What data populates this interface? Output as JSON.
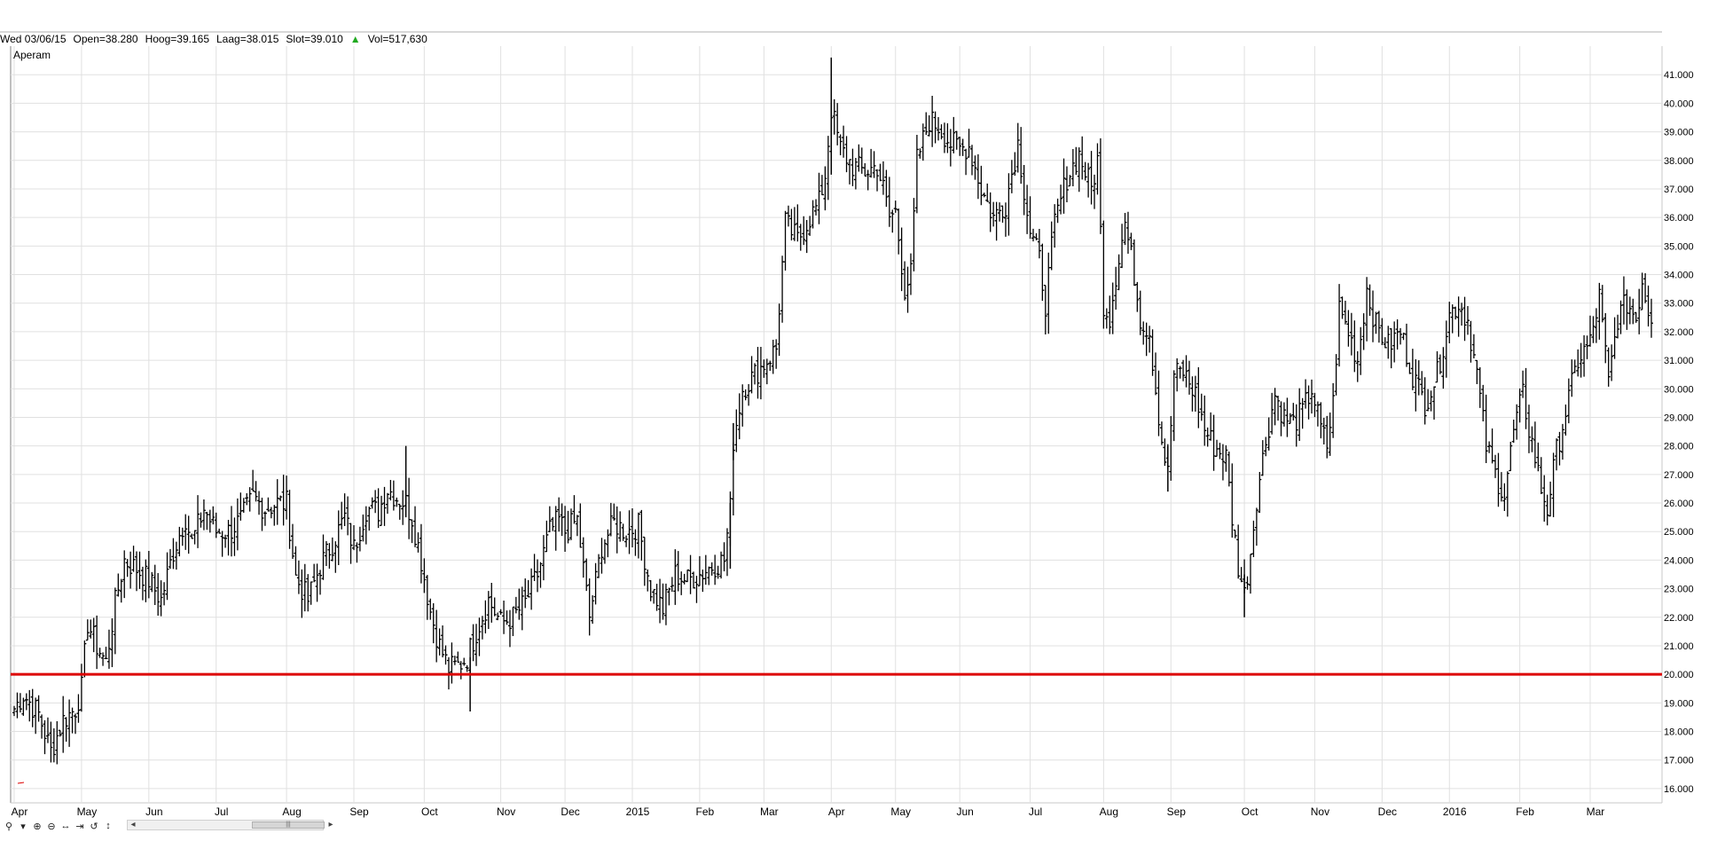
{
  "info_bar": {
    "date": "Wed 03/06/15",
    "open": "Open=38.280",
    "high": "Hoog=39.165",
    "low": "Laag=38.015",
    "close": "Slot=39.010",
    "volume": "Vol=517,630"
  },
  "colors": {
    "bars": "#000000",
    "grid": "#e0e0e0",
    "support_line": "#dd0000",
    "volume_up": "#22aa22"
  },
  "toolbar": {
    "icons": [
      "magnifier-icon",
      "dropdown-icon",
      "zoom-in-icon",
      "zoom-out-icon",
      "pan-horizontal-icon",
      "fit-icon",
      "reset-icon",
      "pan-vertical-icon"
    ]
  },
  "chart_data": {
    "type": "ohlc",
    "symbol_label": "Aperam",
    "y_axis": {
      "min": 15.5,
      "max": 42.0,
      "ticks": [
        "16.000",
        "17.000",
        "18.000",
        "19.000",
        "20.000",
        "21.000",
        "22.000",
        "23.000",
        "24.000",
        "25.000",
        "26.000",
        "27.000",
        "28.000",
        "29.000",
        "30.000",
        "31.000",
        "32.000",
        "33.000",
        "34.000",
        "35.000",
        "36.000",
        "37.000",
        "38.000",
        "39.000",
        "40.000",
        "41.000"
      ]
    },
    "x_axis": {
      "labels": [
        {
          "label": "Apr",
          "pos": 0.0
        },
        {
          "label": "May",
          "pos": 22
        },
        {
          "label": "Jun",
          "pos": 44
        },
        {
          "label": "Jul",
          "pos": 66
        },
        {
          "label": "Aug",
          "pos": 89
        },
        {
          "label": "Sep",
          "pos": 111
        },
        {
          "label": "Oct",
          "pos": 134
        },
        {
          "label": "Nov",
          "pos": 159
        },
        {
          "label": "Dec",
          "pos": 180
        },
        {
          "label": "2015",
          "pos": 202
        },
        {
          "label": "Feb",
          "pos": 224
        },
        {
          "label": "Mar",
          "pos": 245
        },
        {
          "label": "Apr",
          "pos": 267
        },
        {
          "label": "May",
          "pos": 288
        },
        {
          "label": "Jun",
          "pos": 309
        },
        {
          "label": "Jul",
          "pos": 332
        },
        {
          "label": "Aug",
          "pos": 356
        },
        {
          "label": "Sep",
          "pos": 378
        },
        {
          "label": "Oct",
          "pos": 402
        },
        {
          "label": "Nov",
          "pos": 425
        },
        {
          "label": "Dec",
          "pos": 447
        },
        {
          "label": "2016",
          "pos": 469
        },
        {
          "label": "Feb",
          "pos": 492
        },
        {
          "label": "Mar",
          "pos": 515
        }
      ],
      "range": [
        0,
        535
      ]
    },
    "horizontal_line": {
      "value": 20.0
    },
    "series_keypoints": [
      [
        0,
        18.8
      ],
      [
        3,
        19.3
      ],
      [
        8,
        18.6
      ],
      [
        12,
        17.3
      ],
      [
        16,
        18.4
      ],
      [
        20,
        18.8
      ],
      [
        22,
        19.5
      ],
      [
        24,
        21.8
      ],
      [
        27,
        21.0
      ],
      [
        30,
        20.4
      ],
      [
        33,
        22.5
      ],
      [
        36,
        24.0
      ],
      [
        40,
        23.7
      ],
      [
        44,
        23.3
      ],
      [
        48,
        22.6
      ],
      [
        52,
        24.3
      ],
      [
        56,
        25.5
      ],
      [
        58,
        24.6
      ],
      [
        62,
        25.8
      ],
      [
        66,
        25.0
      ],
      [
        70,
        25.0
      ],
      [
        74,
        25.4
      ],
      [
        78,
        26.2
      ],
      [
        82,
        25.8
      ],
      [
        86,
        26.0
      ],
      [
        89,
        26.0
      ],
      [
        92,
        23.4
      ],
      [
        96,
        22.6
      ],
      [
        100,
        23.8
      ],
      [
        104,
        24.6
      ],
      [
        108,
        25.5
      ],
      [
        111,
        24.4
      ],
      [
        115,
        25.8
      ],
      [
        119,
        25.7
      ],
      [
        122,
        26.5
      ],
      [
        125,
        26.2
      ],
      [
        128,
        26.0
      ],
      [
        130,
        25.5
      ],
      [
        133,
        24.0
      ],
      [
        136,
        22.2
      ],
      [
        139,
        21.0
      ],
      [
        142,
        20.2
      ],
      [
        145,
        20.3
      ],
      [
        148,
        20.6
      ],
      [
        151,
        21.5
      ],
      [
        155,
        22.6
      ],
      [
        159,
        21.8
      ],
      [
        163,
        22.0
      ],
      [
        167,
        22.5
      ],
      [
        171,
        23.5
      ],
      [
        175,
        25.0
      ],
      [
        178,
        25.4
      ],
      [
        180,
        25.0
      ],
      [
        184,
        25.4
      ],
      [
        188,
        22.0
      ],
      [
        192,
        24.5
      ],
      [
        196,
        25.3
      ],
      [
        200,
        25.0
      ],
      [
        204,
        25.2
      ],
      [
        208,
        23.0
      ],
      [
        212,
        22.3
      ],
      [
        216,
        23.5
      ],
      [
        220,
        23.3
      ],
      [
        224,
        23.5
      ],
      [
        228,
        23.8
      ],
      [
        232,
        24.0
      ],
      [
        234,
        25.8
      ],
      [
        235,
        28.2
      ],
      [
        238,
        30.0
      ],
      [
        242,
        30.5
      ],
      [
        246,
        31.0
      ],
      [
        249,
        31.4
      ],
      [
        252,
        35.8
      ],
      [
        256,
        35.2
      ],
      [
        260,
        36.0
      ],
      [
        263,
        36.5
      ],
      [
        265,
        37.5
      ],
      [
        267,
        39.8
      ],
      [
        270,
        38.4
      ],
      [
        274,
        37.8
      ],
      [
        278,
        37.6
      ],
      [
        282,
        37.8
      ],
      [
        284,
        37.0
      ],
      [
        286,
        36.0
      ],
      [
        288,
        36.2
      ],
      [
        291,
        33.5
      ],
      [
        293,
        34.0
      ],
      [
        295,
        38.0
      ],
      [
        299,
        39.4
      ],
      [
        302,
        39.2
      ],
      [
        306,
        38.6
      ],
      [
        309,
        38.4
      ],
      [
        312,
        38.5
      ],
      [
        316,
        37.0
      ],
      [
        320,
        36.0
      ],
      [
        324,
        36.5
      ],
      [
        328,
        38.6
      ],
      [
        330,
        37.0
      ],
      [
        332,
        35.5
      ],
      [
        335,
        34.5
      ],
      [
        337,
        33.0
      ],
      [
        340,
        35.8
      ],
      [
        344,
        37.4
      ],
      [
        348,
        38.2
      ],
      [
        352,
        37.0
      ],
      [
        354,
        38.0
      ],
      [
        356,
        33.0
      ],
      [
        358,
        32.5
      ],
      [
        360,
        34.0
      ],
      [
        363,
        35.8
      ],
      [
        366,
        34.0
      ],
      [
        368,
        32.5
      ],
      [
        371,
        32.0
      ],
      [
        373,
        30.0
      ],
      [
        375,
        28.2
      ],
      [
        377,
        27.0
      ],
      [
        379,
        30.5
      ],
      [
        382,
        30.6
      ],
      [
        386,
        29.8
      ],
      [
        389,
        28.6
      ],
      [
        392,
        28.0
      ],
      [
        396,
        27.6
      ],
      [
        398,
        25.5
      ],
      [
        400,
        23.8
      ],
      [
        402,
        22.8
      ],
      [
        404,
        24.3
      ],
      [
        406,
        26.2
      ],
      [
        409,
        28.2
      ],
      [
        412,
        29.8
      ],
      [
        415,
        29.0
      ],
      [
        418,
        28.8
      ],
      [
        421,
        29.2
      ],
      [
        424,
        30.0
      ],
      [
        427,
        28.6
      ],
      [
        429,
        28.0
      ],
      [
        431,
        29.5
      ],
      [
        433,
        32.8
      ],
      [
        436,
        32.0
      ],
      [
        439,
        31.0
      ],
      [
        442,
        33.5
      ],
      [
        445,
        32.2
      ],
      [
        449,
        31.5
      ],
      [
        453,
        32.0
      ],
      [
        457,
        30.5
      ],
      [
        461,
        29.5
      ],
      [
        465,
        30.5
      ],
      [
        469,
        32.6
      ],
      [
        472,
        33.0
      ],
      [
        475,
        32.4
      ],
      [
        478,
        30.5
      ],
      [
        481,
        28.0
      ],
      [
        484,
        27.0
      ],
      [
        487,
        26.3
      ],
      [
        490,
        28.5
      ],
      [
        493,
        29.8
      ],
      [
        495,
        28.6
      ],
      [
        497,
        27.6
      ],
      [
        499,
        26.5
      ],
      [
        501,
        25.8
      ],
      [
        504,
        27.8
      ],
      [
        507,
        29.2
      ],
      [
        511,
        31.0
      ],
      [
        515,
        31.6
      ],
      [
        518,
        33.2
      ],
      [
        521,
        30.2
      ],
      [
        524,
        32.5
      ],
      [
        527,
        33.0
      ],
      [
        530,
        32.5
      ],
      [
        532,
        33.8
      ],
      [
        535,
        32.3
      ]
    ],
    "spikes": [
      {
        "pos": 267,
        "high": 41.6,
        "low": 37.5
      },
      {
        "pos": 128,
        "high": 28.0,
        "low": 25.5
      },
      {
        "pos": 149,
        "high": 20.6,
        "low": 18.7
      },
      {
        "pos": 234,
        "high": 26.0,
        "low": 23.7
      },
      {
        "pos": 235,
        "high": 28.8,
        "low": 27.5
      },
      {
        "pos": 402,
        "high": 23.5,
        "low": 22.0
      },
      {
        "pos": 377,
        "high": 28.0,
        "low": 26.4
      }
    ]
  }
}
